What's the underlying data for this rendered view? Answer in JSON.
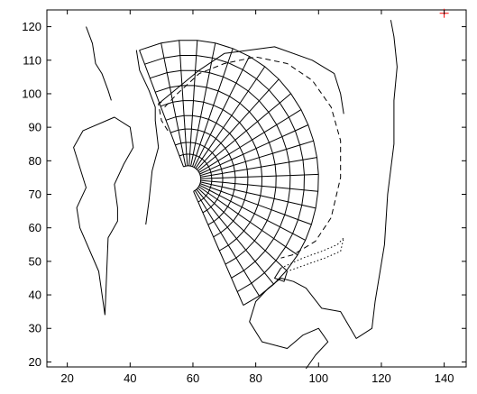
{
  "chart_data": {
    "type": "line",
    "x_ticks": [
      20,
      40,
      60,
      80,
      100,
      120,
      140
    ],
    "y_ticks": [
      20,
      30,
      40,
      50,
      60,
      70,
      80,
      90,
      100,
      110,
      120
    ],
    "xlim": [
      13.5,
      147
    ],
    "ylim": [
      18.5,
      125
    ],
    "grid": false,
    "line_color": "#000000",
    "marker_color": "#ff0000",
    "grid_mesh": {
      "center": [
        58.5,
        74.5
      ],
      "radii": [
        4,
        7.5,
        11,
        15,
        19,
        23.5,
        28,
        32.5,
        37,
        41.5
      ],
      "angles_deg": [
        -65,
        -57,
        -49,
        -41,
        -33,
        -26,
        -19,
        -12,
        -5,
        2,
        9,
        16,
        23,
        30,
        38,
        46,
        54,
        62,
        70,
        78,
        86,
        94,
        102,
        112
      ]
    },
    "series": [
      {
        "style": "solid",
        "points": [
          [
            26,
            120
          ],
          [
            28,
            115
          ],
          [
            29,
            109
          ],
          [
            31,
            106
          ],
          [
            33,
            101
          ],
          [
            34,
            98
          ]
        ]
      },
      {
        "style": "solid",
        "points": [
          [
            32,
            34
          ],
          [
            30,
            47
          ],
          [
            24,
            60
          ],
          [
            23,
            66
          ],
          [
            26,
            72
          ],
          [
            22,
            84
          ],
          [
            25,
            89
          ],
          [
            35,
            93
          ],
          [
            40,
            90
          ],
          [
            41,
            84
          ],
          [
            38,
            79
          ],
          [
            35,
            73
          ],
          [
            36,
            66
          ],
          [
            36,
            62
          ],
          [
            33,
            57
          ],
          [
            32,
            34
          ]
        ]
      },
      {
        "style": "solid",
        "points": [
          [
            45,
            61
          ],
          [
            46,
            68
          ],
          [
            47,
            77
          ],
          [
            49,
            84
          ],
          [
            48,
            92
          ],
          [
            48,
            96
          ],
          [
            46,
            101
          ],
          [
            43,
            107
          ],
          [
            42,
            113
          ]
        ]
      },
      {
        "style": "solid",
        "points": [
          [
            49,
            97
          ],
          [
            62,
            107
          ],
          [
            70,
            112
          ],
          [
            86,
            114
          ],
          [
            98,
            110
          ],
          [
            105,
            106
          ],
          [
            107,
            100
          ],
          [
            108,
            94
          ]
        ]
      },
      {
        "style": "solid",
        "points": [
          [
            123,
            122
          ],
          [
            124,
            117
          ],
          [
            125,
            108
          ],
          [
            124,
            98
          ],
          [
            124,
            85
          ],
          [
            122,
            70
          ],
          [
            121,
            55
          ],
          [
            118,
            38
          ],
          [
            117,
            30
          ],
          [
            112,
            27
          ],
          [
            107,
            35
          ],
          [
            101,
            36
          ],
          [
            96,
            42
          ],
          [
            92,
            44
          ],
          [
            88,
            45
          ],
          [
            84,
            42
          ],
          [
            80,
            38
          ],
          [
            78,
            32
          ],
          [
            82,
            26
          ],
          [
            90,
            24
          ],
          [
            95,
            28
          ],
          [
            100,
            30
          ],
          [
            103,
            26
          ],
          [
            99,
            22
          ],
          [
            96,
            18
          ]
        ]
      },
      {
        "style": "dashed",
        "points": [
          [
            51,
            96
          ],
          [
            55,
            100
          ],
          [
            62,
            106
          ],
          [
            70,
            109
          ],
          [
            80,
            111
          ],
          [
            90,
            109
          ],
          [
            98,
            104
          ],
          [
            104,
            96
          ],
          [
            107,
            86
          ],
          [
            107,
            75
          ],
          [
            104,
            63
          ],
          [
            99,
            56
          ],
          [
            92,
            52
          ],
          [
            88,
            51
          ]
        ]
      },
      {
        "style": "dashed",
        "points": [
          [
            52,
            89
          ],
          [
            50,
            92
          ],
          [
            49,
            97
          ],
          [
            51,
            98
          ]
        ]
      },
      {
        "style": "dotted",
        "points": [
          [
            88,
            48
          ],
          [
            95,
            51
          ],
          [
            101,
            53
          ],
          [
            106,
            55
          ],
          [
            108,
            57
          ],
          [
            107,
            53
          ],
          [
            102,
            51
          ],
          [
            96,
            49
          ],
          [
            90,
            47
          ]
        ]
      },
      {
        "style": "solid",
        "points": [
          [
            88,
            48
          ],
          [
            86,
            45
          ],
          [
            89,
            44
          ],
          [
            90,
            47
          ]
        ]
      }
    ],
    "markers": [
      {
        "x": 140,
        "y": 124,
        "symbol": "+"
      }
    ]
  }
}
